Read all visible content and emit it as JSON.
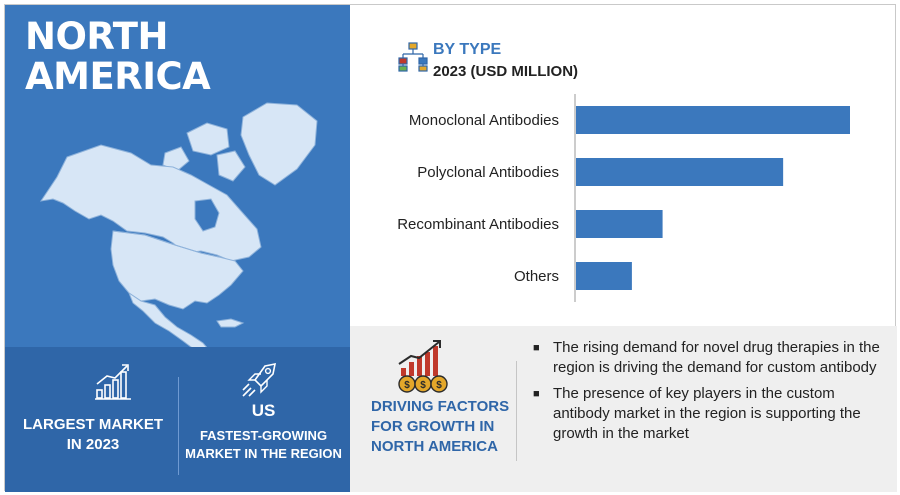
{
  "region": {
    "title_line1": "NORTH",
    "title_line2": "AMERICA"
  },
  "stats": {
    "largest": {
      "line1": "LARGEST MARKET",
      "line2": "IN 2023",
      "icon": "bar-growth-icon"
    },
    "fastest": {
      "country": "US",
      "line1": "FASTEST-GROWING",
      "line2": "MARKET IN THE REGION",
      "icon": "rocket-icon"
    }
  },
  "chart_header": {
    "title": "BY TYPE",
    "subtitle": "2023 (USD MILLION)",
    "icon": "hierarchy-icon"
  },
  "chart_data": {
    "type": "bar",
    "orientation": "horizontal",
    "title": "BY TYPE",
    "subtitle": "2023 (USD MILLION)",
    "categories": [
      "Monoclonal Antibodies",
      "Polyclonal Antibodies",
      "Recombinant Antibodies",
      "Others"
    ],
    "values": [
      100,
      75.6,
      31.6,
      20.4
    ],
    "xlim": [
      0,
      100
    ],
    "grid": false,
    "bar_color": "#3b78bd"
  },
  "drivers": {
    "title_line1": "DRIVING FACTORS",
    "title_line2": "FOR GROWTH IN",
    "title_line3": "NORTH AMERICA",
    "icon": "coins-growth-icon",
    "bullets": [
      "The rising demand for novel drug therapies in the region is driving the demand for custom antibody",
      "The presence of key players in the custom antibody market in the region is supporting the growth in the market"
    ]
  },
  "colors": {
    "primary": "#3b78bd",
    "primary_dark": "#2f66a8",
    "accent_gold": "#e3a72a",
    "accent_red": "#c0392b"
  }
}
